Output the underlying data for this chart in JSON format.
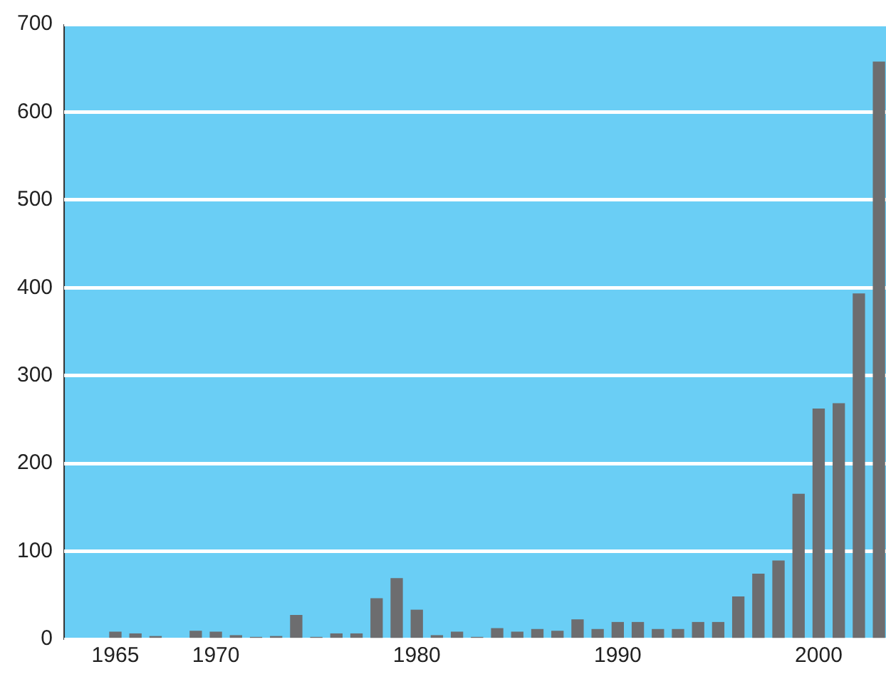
{
  "chart_data": {
    "type": "bar",
    "x": [
      1965,
      1966,
      1967,
      1969,
      1970,
      1971,
      1972,
      1973,
      1974,
      1975,
      1976,
      1977,
      1978,
      1979,
      1980,
      1981,
      1982,
      1983,
      1984,
      1985,
      1986,
      1987,
      1988,
      1989,
      1990,
      1991,
      1992,
      1993,
      1994,
      1995,
      1996,
      1997,
      1998,
      1999,
      2000,
      2001,
      2002,
      2003
    ],
    "values": [
      8,
      6,
      3,
      9,
      8,
      4,
      2,
      3,
      27,
      2,
      6,
      6,
      46,
      69,
      33,
      4,
      8,
      2,
      12,
      8,
      11,
      9,
      22,
      11,
      19,
      19,
      11,
      11,
      19,
      19,
      48,
      74,
      89,
      165,
      262,
      268,
      393,
      657
    ],
    "color": "#6d6d6f",
    "xlim": [
      1962.45,
      2003.35
    ],
    "xticks": [
      1965,
      1970,
      1980,
      1990,
      2000
    ],
    "ylim": [
      0,
      700
    ],
    "yticks": [
      0,
      100,
      200,
      300,
      400,
      500,
      600,
      700
    ],
    "grid": "y",
    "legend": false
  }
}
